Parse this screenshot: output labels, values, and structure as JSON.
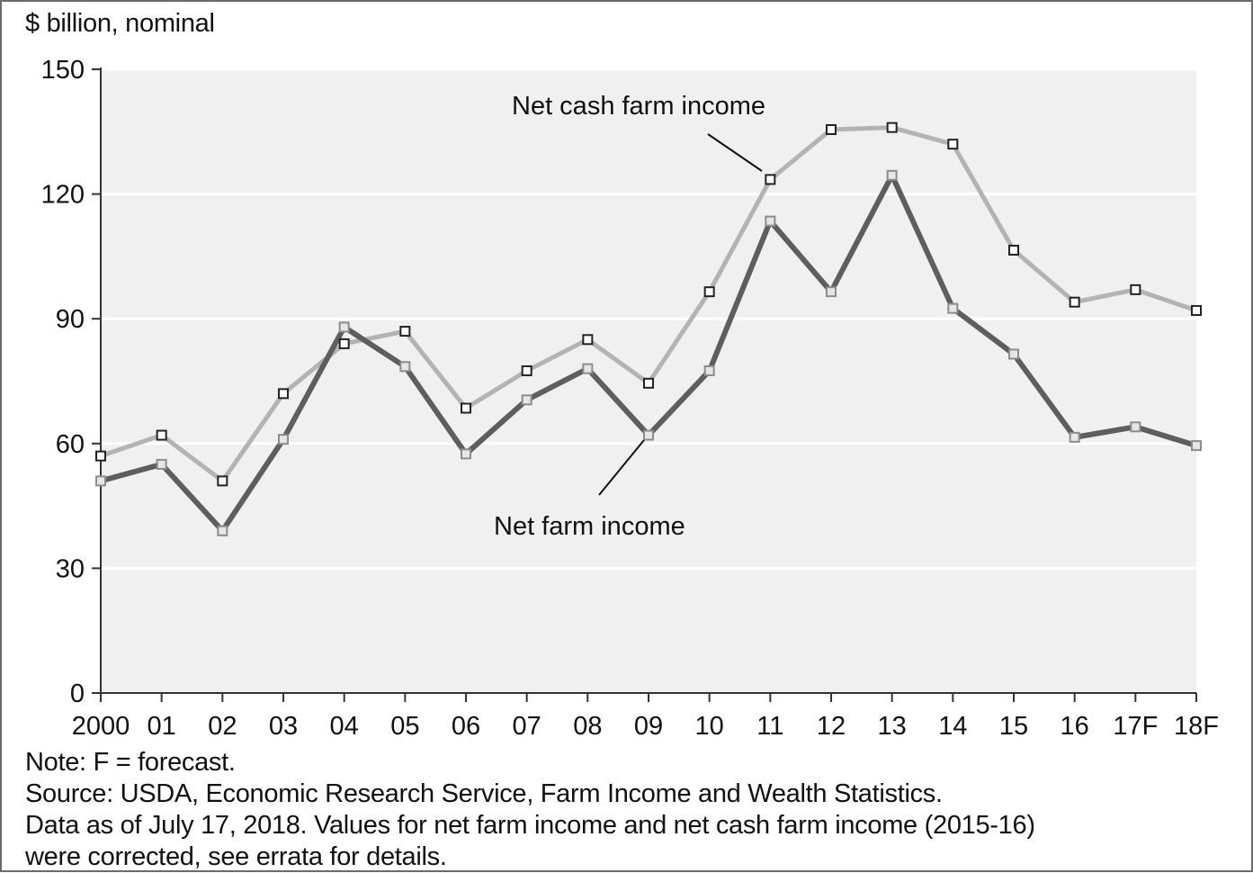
{
  "chart_data": {
    "type": "line",
    "ylabel": "$ billion, nominal",
    "ylim": [
      0,
      150
    ],
    "yticks": [
      0,
      30,
      60,
      90,
      120,
      150
    ],
    "grid": true,
    "categories": [
      "2000",
      "01",
      "02",
      "03",
      "04",
      "05",
      "06",
      "07",
      "08",
      "09",
      "10",
      "11",
      "12",
      "13",
      "14",
      "15",
      "16",
      "17F",
      "18F"
    ],
    "series": [
      {
        "name": "Net cash farm income",
        "color": "#b3b3b3",
        "marker": "dark",
        "values": [
          57,
          62,
          51,
          72,
          84,
          87,
          68.5,
          77.5,
          85,
          74.5,
          96.5,
          123.5,
          135.5,
          136,
          132,
          106.5,
          94,
          97,
          92
        ]
      },
      {
        "name": "Net farm income",
        "color": "#5e5e5e",
        "marker": "light",
        "values": [
          51,
          55,
          39,
          61,
          88,
          78.5,
          57.5,
          70.5,
          78,
          62,
          77.5,
          113.5,
          96.5,
          124.5,
          92.5,
          81.5,
          61.5,
          64,
          59.5
        ]
      }
    ]
  },
  "notes": [
    "Note: F = forecast.",
    "Source: USDA, Economic Research Service, Farm Income and Wealth Statistics.",
    "Data as of July 17, 2018. Values for net farm income and net cash farm income (2015-16)",
    "were corrected, see errata for details."
  ]
}
